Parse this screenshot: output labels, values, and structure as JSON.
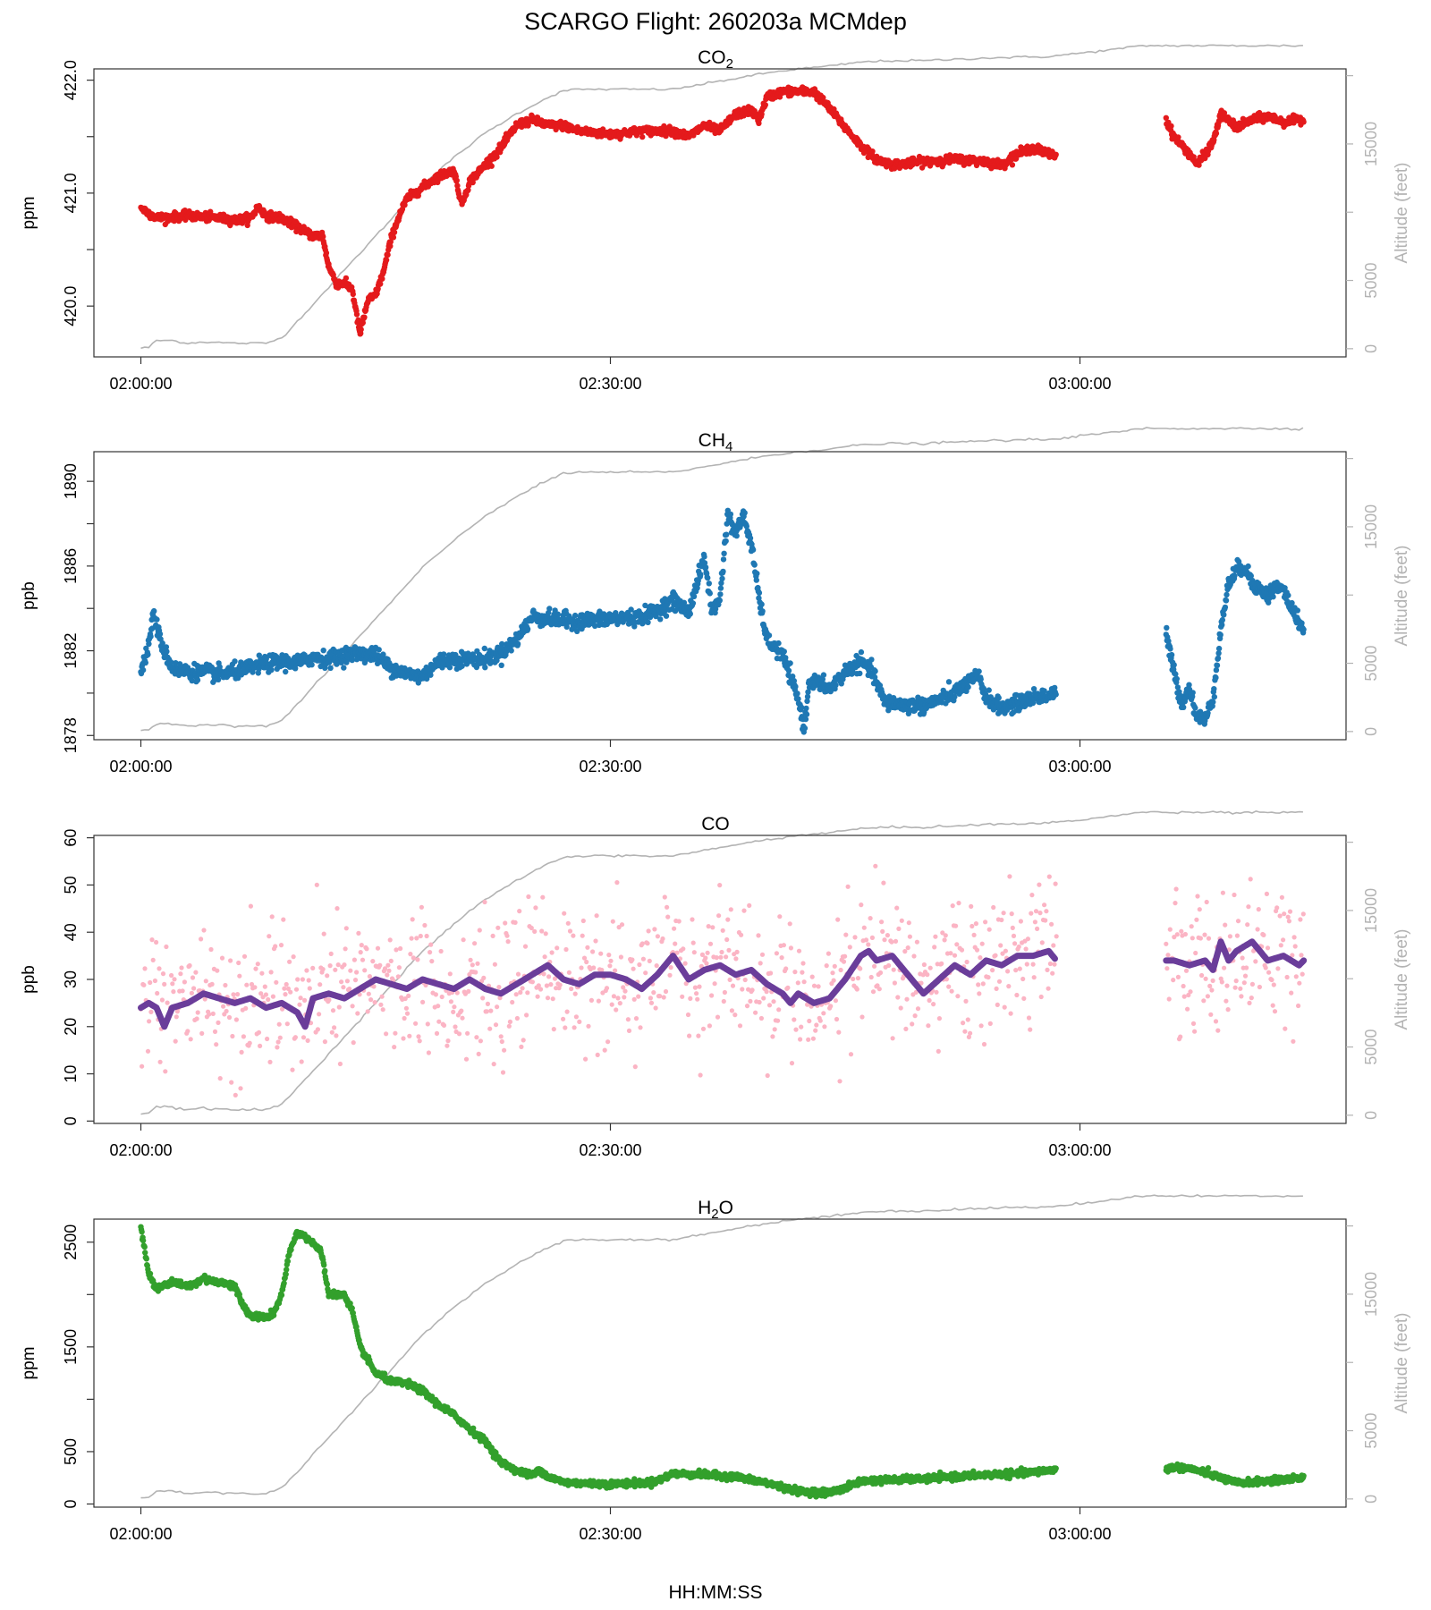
{
  "title": "SCARGO Flight: 260203a  MCMdep",
  "xlabel": "HH:MM:SS",
  "x_tick_labels": [
    "02:00:00",
    "02:30:00",
    "03:00:00"
  ],
  "chart_data": [
    {
      "type": "scatter",
      "title": "CO",
      "title_sub": "2",
      "ylabel": "ppm",
      "y2label": "Altitude (feet)",
      "xlim_minutes": [
        -3,
        77
      ],
      "ylim": [
        419.55,
        422.1
      ],
      "yticks": [
        420.0,
        421.0,
        422.0
      ],
      "ytick_labels": [
        "420.0",
        "421.0",
        "422.0"
      ],
      "y2lim": [
        -600,
        20500
      ],
      "y2ticks": [
        0,
        5000,
        15000
      ],
      "color": "#e41a1c",
      "keypoints": [
        [
          0,
          420.87
        ],
        [
          1,
          420.78
        ],
        [
          3,
          420.8
        ],
        [
          5,
          420.78
        ],
        [
          6,
          420.76
        ],
        [
          7,
          420.78
        ],
        [
          7.5,
          420.88
        ],
        [
          8,
          420.8
        ],
        [
          9,
          420.78
        ],
        [
          10,
          420.7
        ],
        [
          11,
          420.62
        ],
        [
          11.6,
          420.63
        ],
        [
          12,
          420.35
        ],
        [
          12.5,
          420.2
        ],
        [
          13,
          420.2
        ],
        [
          13.5,
          420.15
        ],
        [
          14,
          419.75
        ],
        [
          14.5,
          420.05
        ],
        [
          15,
          420.1
        ],
        [
          15.5,
          420.3
        ],
        [
          16,
          420.6
        ],
        [
          16.5,
          420.8
        ],
        [
          17,
          420.95
        ],
        [
          18,
          421.05
        ],
        [
          19,
          421.15
        ],
        [
          20,
          421.2
        ],
        [
          20.5,
          420.9
        ],
        [
          21,
          421.1
        ],
        [
          22,
          421.25
        ],
        [
          23,
          421.4
        ],
        [
          24,
          421.6
        ],
        [
          25,
          421.65
        ],
        [
          26,
          421.6
        ],
        [
          27,
          421.6
        ],
        [
          28,
          421.55
        ],
        [
          30,
          421.52
        ],
        [
          32,
          421.55
        ],
        [
          34,
          421.55
        ],
        [
          35,
          421.5
        ],
        [
          36,
          421.6
        ],
        [
          37,
          421.55
        ],
        [
          38,
          421.7
        ],
        [
          39,
          421.73
        ],
        [
          39.5,
          421.65
        ],
        [
          40,
          421.85
        ],
        [
          41,
          421.9
        ],
        [
          43,
          421.9
        ],
        [
          44,
          421.75
        ],
        [
          45,
          421.58
        ],
        [
          46,
          421.42
        ],
        [
          47,
          421.3
        ],
        [
          48,
          421.25
        ],
        [
          50,
          421.28
        ],
        [
          52,
          421.3
        ],
        [
          54,
          421.28
        ],
        [
          55,
          421.25
        ],
        [
          56,
          421.35
        ],
        [
          57,
          421.4
        ],
        [
          58,
          421.35
        ],
        [
          58.5,
          421.33
        ]
      ],
      "keypoints2": [
        [
          65.5,
          421.65
        ],
        [
          66,
          421.5
        ],
        [
          67,
          421.35
        ],
        [
          67.5,
          421.25
        ],
        [
          68,
          421.35
        ],
        [
          68.5,
          421.45
        ],
        [
          69,
          421.7
        ],
        [
          70,
          421.58
        ],
        [
          71,
          421.65
        ],
        [
          72,
          421.68
        ],
        [
          73,
          421.63
        ],
        [
          74,
          421.65
        ],
        [
          74.3,
          421.65
        ]
      ],
      "noise": 0.018
    },
    {
      "type": "scatter",
      "title": "CH",
      "title_sub": "4",
      "ylabel": "ppb",
      "y2label": "Altitude (feet)",
      "xlim_minutes": [
        -3,
        77
      ],
      "ylim": [
        1877.8,
        1891.4
      ],
      "yticks": [
        1878,
        1882,
        1886,
        1890
      ],
      "ytick_labels": [
        "1878",
        "1882",
        "1886",
        "1890"
      ],
      "y2lim": [
        -600,
        20500
      ],
      "y2ticks": [
        0,
        5000,
        15000
      ],
      "color": "#1f78b4",
      "keypoints": [
        [
          0,
          1881.0
        ],
        [
          0.5,
          1882.2
        ],
        [
          0.8,
          1883.8
        ],
        [
          1.3,
          1882.3
        ],
        [
          2,
          1881.2
        ],
        [
          3,
          1881.0
        ],
        [
          4,
          1881.0
        ],
        [
          5,
          1880.9
        ],
        [
          6,
          1881.0
        ],
        [
          7,
          1881.2
        ],
        [
          8,
          1881.4
        ],
        [
          9,
          1881.5
        ],
        [
          10,
          1881.4
        ],
        [
          11,
          1881.7
        ],
        [
          12,
          1881.6
        ],
        [
          13,
          1881.8
        ],
        [
          14,
          1881.9
        ],
        [
          15,
          1881.8
        ],
        [
          16,
          1881.2
        ],
        [
          17,
          1880.9
        ],
        [
          18,
          1880.8
        ],
        [
          19,
          1881.5
        ],
        [
          20,
          1881.6
        ],
        [
          22,
          1881.6
        ],
        [
          23,
          1881.9
        ],
        [
          24,
          1882.5
        ],
        [
          25,
          1883.6
        ],
        [
          26,
          1883.5
        ],
        [
          28,
          1883.4
        ],
        [
          30,
          1883.5
        ],
        [
          32,
          1883.6
        ],
        [
          33,
          1883.9
        ],
        [
          34,
          1884.4
        ],
        [
          34.5,
          1884.1
        ],
        [
          35,
          1883.8
        ],
        [
          36,
          1886.4
        ],
        [
          36.5,
          1883.8
        ],
        [
          37,
          1884.5
        ],
        [
          37.5,
          1888.5
        ],
        [
          38,
          1887.5
        ],
        [
          38.5,
          1888.4
        ],
        [
          39,
          1887.0
        ],
        [
          39.5,
          1884.5
        ],
        [
          40,
          1882.5
        ],
        [
          41,
          1881.8
        ],
        [
          42,
          1879.7
        ],
        [
          42.4,
          1878.3
        ],
        [
          42.7,
          1880.6
        ],
        [
          43.5,
          1880.4
        ],
        [
          44,
          1880.2
        ],
        [
          45,
          1881.0
        ],
        [
          46,
          1881.5
        ],
        [
          46.8,
          1880.9
        ],
        [
          47.5,
          1879.6
        ],
        [
          48,
          1879.5
        ],
        [
          50,
          1879.4
        ],
        [
          51,
          1879.7
        ],
        [
          52,
          1880.0
        ],
        [
          52.5,
          1880.3
        ],
        [
          53.5,
          1880.8
        ],
        [
          54,
          1879.8
        ],
        [
          55,
          1879.3
        ],
        [
          56,
          1879.5
        ],
        [
          57,
          1879.8
        ],
        [
          58,
          1879.9
        ],
        [
          58.5,
          1880.0
        ]
      ],
      "keypoints2": [
        [
          65.5,
          1882.8
        ],
        [
          66,
          1881.0
        ],
        [
          66.5,
          1879.5
        ],
        [
          67,
          1880.3
        ],
        [
          67.4,
          1879.0
        ],
        [
          68,
          1878.7
        ],
        [
          68.5,
          1879.8
        ],
        [
          69,
          1883.0
        ],
        [
          69.5,
          1885.2
        ],
        [
          70,
          1885.8
        ],
        [
          70.5,
          1886.0
        ],
        [
          71,
          1885.2
        ],
        [
          72,
          1884.6
        ],
        [
          72.5,
          1885.0
        ],
        [
          73,
          1884.9
        ],
        [
          73.5,
          1884.0
        ],
        [
          74,
          1883.4
        ],
        [
          74.3,
          1883.0
        ]
      ],
      "noise": 0.18
    },
    {
      "type": "scatter+line",
      "title": "CO",
      "title_sub": "",
      "ylabel": "ppb",
      "y2label": "Altitude (feet)",
      "xlim_minutes": [
        -3,
        77
      ],
      "ylim": [
        -0.5,
        60.5
      ],
      "yticks": [
        0,
        10,
        20,
        30,
        40,
        50,
        60
      ],
      "ytick_labels": [
        "0",
        "10",
        "20",
        "30",
        "40",
        "50",
        "60"
      ],
      "y2lim": [
        -600,
        20500
      ],
      "y2ticks": [
        0,
        5000,
        15000
      ],
      "color": "#fbb4c4",
      "line_color": "#6a3d9a",
      "keypoints": [
        [
          0,
          24
        ],
        [
          0.5,
          25
        ],
        [
          1,
          24
        ],
        [
          1.5,
          20
        ],
        [
          2,
          24
        ],
        [
          3,
          25
        ],
        [
          4,
          27
        ],
        [
          5,
          26
        ],
        [
          6,
          25
        ],
        [
          7,
          26
        ],
        [
          8,
          24
        ],
        [
          9,
          25
        ],
        [
          10,
          23
        ],
        [
          10.5,
          20
        ],
        [
          11,
          26
        ],
        [
          12,
          27
        ],
        [
          13,
          26
        ],
        [
          14,
          28
        ],
        [
          15,
          30
        ],
        [
          16,
          29
        ],
        [
          17,
          28
        ],
        [
          18,
          30
        ],
        [
          19,
          29
        ],
        [
          20,
          28
        ],
        [
          21,
          30
        ],
        [
          22,
          28
        ],
        [
          23,
          27
        ],
        [
          24,
          29
        ],
        [
          25,
          31
        ],
        [
          26,
          33
        ],
        [
          27,
          30
        ],
        [
          28,
          29
        ],
        [
          29,
          31
        ],
        [
          30,
          31
        ],
        [
          31,
          30
        ],
        [
          32,
          28
        ],
        [
          33,
          31
        ],
        [
          34,
          35
        ],
        [
          35,
          30
        ],
        [
          36,
          32
        ],
        [
          37,
          33
        ],
        [
          38,
          31
        ],
        [
          39,
          32
        ],
        [
          40,
          29
        ],
        [
          41,
          27
        ],
        [
          41.5,
          25
        ],
        [
          42,
          27
        ],
        [
          43,
          25
        ],
        [
          44,
          26
        ],
        [
          45,
          30
        ],
        [
          46,
          35
        ],
        [
          46.5,
          36
        ],
        [
          47,
          34
        ],
        [
          48,
          35
        ],
        [
          49,
          31
        ],
        [
          50,
          27
        ],
        [
          51,
          30
        ],
        [
          52,
          33
        ],
        [
          53,
          31
        ],
        [
          54,
          34
        ],
        [
          55,
          33
        ],
        [
          56,
          35
        ],
        [
          57,
          35
        ],
        [
          58,
          36
        ],
        [
          58.5,
          34
        ]
      ],
      "keypoints2": [
        [
          65.5,
          34
        ],
        [
          66,
          34
        ],
        [
          67,
          33
        ],
        [
          68,
          34
        ],
        [
          68.5,
          32
        ],
        [
          69,
          38
        ],
        [
          69.5,
          34
        ],
        [
          70,
          36
        ],
        [
          71,
          38
        ],
        [
          72,
          34
        ],
        [
          73,
          35
        ],
        [
          74,
          33
        ],
        [
          74.3,
          34
        ]
      ],
      "noise": 4.5
    },
    {
      "type": "scatter",
      "title": "H",
      "title_sub": "2",
      "title_suffix": "O",
      "ylabel": "ppm",
      "y2label": "Altitude (feet)",
      "xlim_minutes": [
        -3,
        77
      ],
      "ylim": [
        -30,
        2720
      ],
      "yticks": [
        0,
        500,
        1500,
        2500
      ],
      "ytick_labels": [
        "0",
        "500",
        "1500",
        "2500"
      ],
      "y2lim": [
        -600,
        20500
      ],
      "y2ticks": [
        0,
        5000,
        15000
      ],
      "color": "#33a02c",
      "keypoints": [
        [
          0,
          2650
        ],
        [
          0.5,
          2200
        ],
        [
          1,
          2050
        ],
        [
          2,
          2120
        ],
        [
          3,
          2080
        ],
        [
          4,
          2150
        ],
        [
          5,
          2120
        ],
        [
          6,
          2080
        ],
        [
          6.5,
          1900
        ],
        [
          7,
          1800
        ],
        [
          8,
          1780
        ],
        [
          8.5,
          1820
        ],
        [
          9,
          2000
        ],
        [
          9.5,
          2400
        ],
        [
          10,
          2600
        ],
        [
          11,
          2500
        ],
        [
          11.5,
          2400
        ],
        [
          11.6,
          2350
        ],
        [
          12,
          2000
        ],
        [
          13,
          2000
        ],
        [
          13.5,
          1850
        ],
        [
          14,
          1500
        ],
        [
          15,
          1250
        ],
        [
          16,
          1170
        ],
        [
          17,
          1150
        ],
        [
          18,
          1080
        ],
        [
          19,
          950
        ],
        [
          20,
          850
        ],
        [
          21,
          720
        ],
        [
          22,
          600
        ],
        [
          23,
          400
        ],
        [
          24,
          320
        ],
        [
          25,
          270
        ],
        [
          25.5,
          330
        ],
        [
          26,
          260
        ],
        [
          27,
          210
        ],
        [
          28,
          200
        ],
        [
          30,
          190
        ],
        [
          32,
          200
        ],
        [
          33,
          220
        ],
        [
          34,
          290
        ],
        [
          36,
          280
        ],
        [
          38,
          260
        ],
        [
          40,
          200
        ],
        [
          42,
          120
        ],
        [
          44,
          110
        ],
        [
          45,
          150
        ],
        [
          46,
          220
        ],
        [
          48,
          230
        ],
        [
          50,
          240
        ],
        [
          52,
          260
        ],
        [
          54,
          280
        ],
        [
          56,
          290
        ],
        [
          58,
          320
        ],
        [
          58.5,
          330
        ]
      ],
      "keypoints2": [
        [
          65.5,
          340
        ],
        [
          66,
          350
        ],
        [
          67,
          340
        ],
        [
          68,
          300
        ],
        [
          69,
          250
        ],
        [
          70,
          200
        ],
        [
          71,
          210
        ],
        [
          72,
          220
        ],
        [
          73,
          230
        ],
        [
          74,
          250
        ],
        [
          74.3,
          250
        ]
      ],
      "noise": 15
    }
  ],
  "altitude": {
    "label": "Altitude (feet)",
    "color": "#b3b3b3",
    "keypoints": [
      [
        0,
        50
      ],
      [
        0.5,
        100
      ],
      [
        1,
        600
      ],
      [
        2,
        600
      ],
      [
        3,
        400
      ],
      [
        4,
        500
      ],
      [
        6,
        400
      ],
      [
        8,
        400
      ],
      [
        9,
        800
      ],
      [
        10,
        2000
      ],
      [
        12,
        4500
      ],
      [
        14,
        7000
      ],
      [
        16,
        9500
      ],
      [
        18,
        12000
      ],
      [
        20,
        14000
      ],
      [
        22,
        15800
      ],
      [
        24,
        17200
      ],
      [
        26,
        18400
      ],
      [
        27,
        18900
      ],
      [
        28,
        19000
      ],
      [
        30,
        19000
      ],
      [
        34,
        19000
      ],
      [
        36,
        19400
      ],
      [
        38,
        19800
      ],
      [
        40,
        20200
      ],
      [
        42,
        20500
      ],
      [
        44,
        20700
      ],
      [
        46,
        21000
      ],
      [
        48,
        21100
      ],
      [
        50,
        21100
      ],
      [
        54,
        21300
      ],
      [
        58,
        21400
      ],
      [
        62,
        21900
      ],
      [
        64,
        22200
      ],
      [
        66,
        22200
      ],
      [
        74.3,
        22200
      ]
    ]
  }
}
